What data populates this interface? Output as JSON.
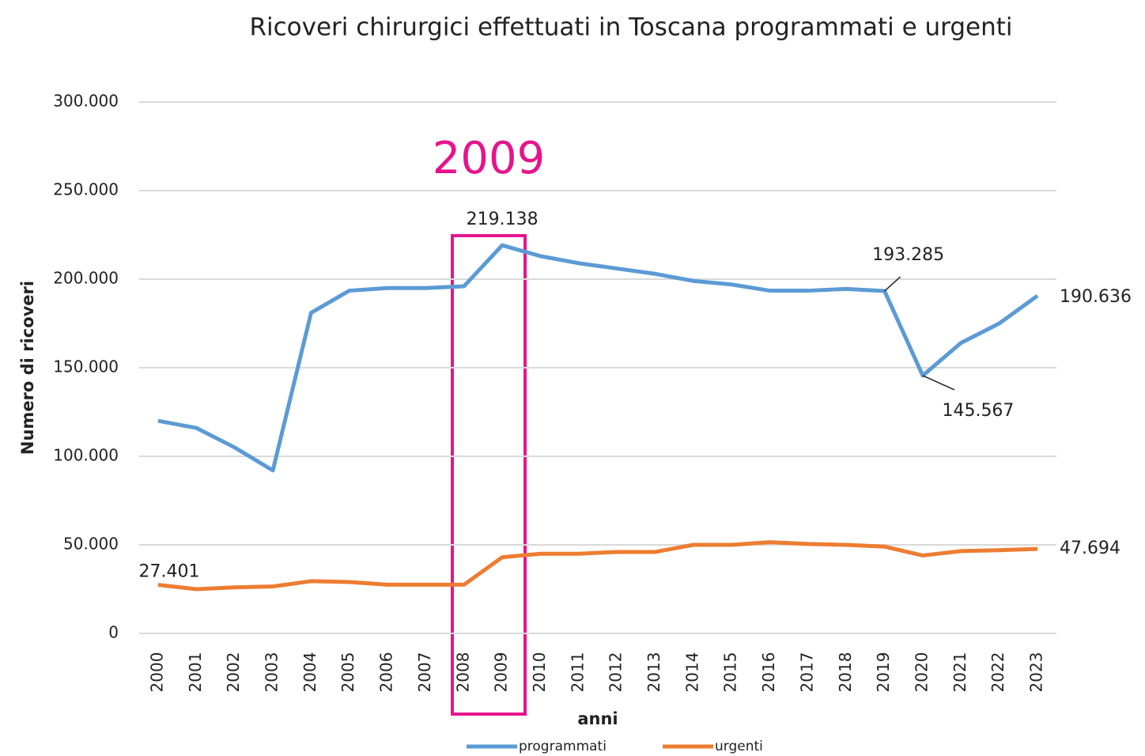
{
  "chart_data": {
    "type": "line",
    "title": "Ricoveri chirurgici effettuati in Toscana programmati e urgenti",
    "y_label": "Numero di ricoveri",
    "x_label": "anni",
    "annotation": "2009",
    "categories": [
      "2000",
      "2001",
      "2002",
      "2003",
      "2004",
      "2005",
      "2006",
      "2007",
      "2008",
      "2009",
      "2010",
      "2011",
      "2012",
      "2013",
      "2014",
      "2015",
      "2016",
      "2017",
      "2018",
      "2019",
      "2020",
      "2021",
      "2022",
      "2023"
    ],
    "series": [
      {
        "name": "programmati",
        "color": "#5b9bd5",
        "values": [
          120000,
          116000,
          105000,
          92000,
          181000,
          193500,
          195000,
          195000,
          196000,
          219138,
          213000,
          209000,
          206000,
          203000,
          199000,
          197000,
          193500,
          193500,
          194500,
          193285,
          145567,
          164000,
          175000,
          190636
        ],
        "value_labels": [
          null,
          null,
          null,
          null,
          null,
          null,
          null,
          null,
          null,
          "219.138",
          null,
          null,
          null,
          null,
          null,
          null,
          null,
          null,
          null,
          "193.285",
          "145.567",
          null,
          null,
          "190.636"
        ]
      },
      {
        "name": "urgenti",
        "color": "#ed7d31",
        "values": [
          27401,
          25000,
          26000,
          26500,
          29500,
          29000,
          27500,
          27500,
          27500,
          43000,
          45000,
          45000,
          46000,
          46000,
          50000,
          50000,
          51500,
          50500,
          50000,
          49000,
          44000,
          46500,
          47000,
          47694
        ],
        "value_labels": [
          "27.401",
          null,
          null,
          null,
          null,
          null,
          null,
          null,
          null,
          null,
          null,
          null,
          null,
          null,
          null,
          null,
          null,
          null,
          null,
          null,
          null,
          null,
          null,
          "47.694"
        ]
      }
    ],
    "ylim": [
      0,
      300000
    ],
    "yticks": [
      0,
      {
        "value": 50000,
        "label": "50.000"
      },
      {
        "value": 100000,
        "label": "100.000"
      },
      {
        "value": 150000,
        "label": "150.000"
      },
      {
        "value": 200000,
        "label": "200.000"
      },
      {
        "value": 250000,
        "label": "250.000"
      },
      {
        "value": 300000,
        "label": "300.000"
      }
    ],
    "grid": true
  }
}
